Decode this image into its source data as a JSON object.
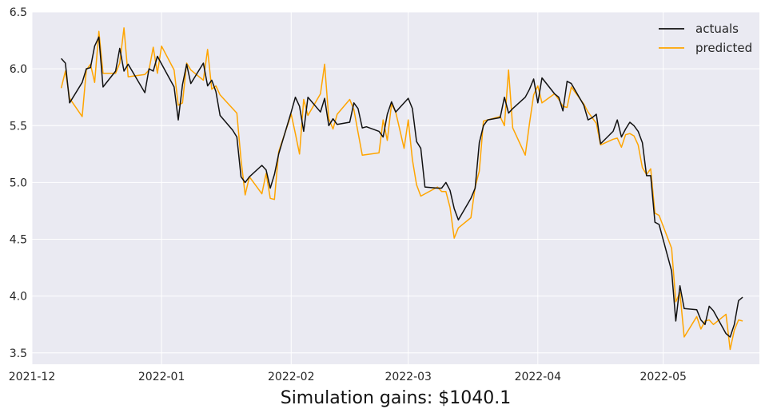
{
  "chart_data": {
    "type": "line",
    "xlabel": "Simulation gains: $1040.1",
    "ylabel": "",
    "ylim": [
      3.4,
      6.5
    ],
    "xlim": [
      "2021-12-01",
      "2022-05-24"
    ],
    "grid": true,
    "legend_position": "top-right",
    "background": "#eaeaf2",
    "x_ticks": [
      "2021-12-01",
      "2022-01-01",
      "2022-02-01",
      "2022-03-01",
      "2022-04-01",
      "2022-05-01"
    ],
    "x_tick_labels": [
      "2021-12",
      "2022-01",
      "2022-02",
      "2022-03",
      "2022-04",
      "2022-05"
    ],
    "y_ticks": [
      3.5,
      4.0,
      4.5,
      5.0,
      5.5,
      6.0,
      6.5
    ],
    "y_tick_labels": [
      "3.5",
      "4.0",
      "4.5",
      "5.0",
      "5.5",
      "6.0",
      "6.5"
    ],
    "series": [
      {
        "name": "actuals",
        "color": "#111111",
        "points": [
          [
            "2021-12-08",
            6.09
          ],
          [
            "2021-12-09",
            6.05
          ],
          [
            "2021-12-10",
            5.7
          ],
          [
            "2021-12-13",
            5.88
          ],
          [
            "2021-12-14",
            6.0
          ],
          [
            "2021-12-15",
            6.01
          ],
          [
            "2021-12-16",
            6.2
          ],
          [
            "2021-12-17",
            6.28
          ],
          [
            "2021-12-18",
            5.84
          ],
          [
            "2021-12-21",
            5.98
          ],
          [
            "2021-12-22",
            6.18
          ],
          [
            "2021-12-23",
            5.98
          ],
          [
            "2021-12-24",
            6.04
          ],
          [
            "2021-12-28",
            5.79
          ],
          [
            "2021-12-29",
            6.0
          ],
          [
            "2021-12-30",
            5.98
          ],
          [
            "2021-12-31",
            6.11
          ],
          [
            "2022-01-04",
            5.84
          ],
          [
            "2022-01-05",
            5.55
          ],
          [
            "2022-01-06",
            5.86
          ],
          [
            "2022-01-07",
            6.04
          ],
          [
            "2022-01-08",
            5.87
          ],
          [
            "2022-01-11",
            6.05
          ],
          [
            "2022-01-12",
            5.85
          ],
          [
            "2022-01-13",
            5.9
          ],
          [
            "2022-01-14",
            5.8
          ],
          [
            "2022-01-15",
            5.59
          ],
          [
            "2022-01-18",
            5.46
          ],
          [
            "2022-01-19",
            5.4
          ],
          [
            "2022-01-20",
            5.05
          ],
          [
            "2022-01-21",
            5.0
          ],
          [
            "2022-01-22",
            5.05
          ],
          [
            "2022-01-25",
            5.15
          ],
          [
            "2022-01-26",
            5.11
          ],
          [
            "2022-01-27",
            4.95
          ],
          [
            "2022-01-28",
            5.07
          ],
          [
            "2022-01-29",
            5.25
          ],
          [
            "2022-02-01",
            5.62
          ],
          [
            "2022-02-02",
            5.75
          ],
          [
            "2022-02-03",
            5.67
          ],
          [
            "2022-02-04",
            5.45
          ],
          [
            "2022-02-05",
            5.75
          ],
          [
            "2022-02-08",
            5.62
          ],
          [
            "2022-02-09",
            5.74
          ],
          [
            "2022-02-10",
            5.5
          ],
          [
            "2022-02-11",
            5.56
          ],
          [
            "2022-02-12",
            5.51
          ],
          [
            "2022-02-15",
            5.53
          ],
          [
            "2022-02-16",
            5.7
          ],
          [
            "2022-02-17",
            5.65
          ],
          [
            "2022-02-18",
            5.48
          ],
          [
            "2022-02-19",
            5.49
          ],
          [
            "2022-02-22",
            5.45
          ],
          [
            "2022-02-23",
            5.4
          ],
          [
            "2022-02-24",
            5.6
          ],
          [
            "2022-02-25",
            5.71
          ],
          [
            "2022-02-26",
            5.62
          ],
          [
            "2022-03-01",
            5.74
          ],
          [
            "2022-03-02",
            5.65
          ],
          [
            "2022-03-03",
            5.36
          ],
          [
            "2022-03-04",
            5.3
          ],
          [
            "2022-03-05",
            4.96
          ],
          [
            "2022-03-08",
            4.95
          ],
          [
            "2022-03-09",
            4.95
          ],
          [
            "2022-03-10",
            5.0
          ],
          [
            "2022-03-11",
            4.93
          ],
          [
            "2022-03-12",
            4.77
          ],
          [
            "2022-03-13",
            4.67
          ],
          [
            "2022-03-16",
            4.86
          ],
          [
            "2022-03-17",
            4.95
          ],
          [
            "2022-03-18",
            5.35
          ],
          [
            "2022-03-19",
            5.5
          ],
          [
            "2022-03-20",
            5.55
          ],
          [
            "2022-03-23",
            5.57
          ],
          [
            "2022-03-24",
            5.75
          ],
          [
            "2022-03-25",
            5.61
          ],
          [
            "2022-03-26",
            5.65
          ],
          [
            "2022-03-29",
            5.75
          ],
          [
            "2022-03-30",
            5.82
          ],
          [
            "2022-03-31",
            5.91
          ],
          [
            "2022-04-01",
            5.7
          ],
          [
            "2022-04-02",
            5.92
          ],
          [
            "2022-04-05",
            5.78
          ],
          [
            "2022-04-06",
            5.75
          ],
          [
            "2022-04-07",
            5.63
          ],
          [
            "2022-04-08",
            5.89
          ],
          [
            "2022-04-09",
            5.87
          ],
          [
            "2022-04-12",
            5.68
          ],
          [
            "2022-04-13",
            5.55
          ],
          [
            "2022-04-14",
            5.57
          ],
          [
            "2022-04-15",
            5.6
          ],
          [
            "2022-04-16",
            5.34
          ],
          [
            "2022-04-19",
            5.45
          ],
          [
            "2022-04-20",
            5.55
          ],
          [
            "2022-04-21",
            5.4
          ],
          [
            "2022-04-22",
            5.47
          ],
          [
            "2022-04-23",
            5.53
          ],
          [
            "2022-04-24",
            5.5
          ],
          [
            "2022-04-25",
            5.45
          ],
          [
            "2022-04-26",
            5.35
          ],
          [
            "2022-04-27",
            5.06
          ],
          [
            "2022-04-28",
            5.06
          ],
          [
            "2022-04-29",
            4.65
          ],
          [
            "2022-04-30",
            4.63
          ],
          [
            "2022-05-03",
            4.22
          ],
          [
            "2022-05-04",
            3.78
          ],
          [
            "2022-05-05",
            4.09
          ],
          [
            "2022-05-06",
            3.89
          ],
          [
            "2022-05-09",
            3.88
          ],
          [
            "2022-05-10",
            3.79
          ],
          [
            "2022-05-11",
            3.75
          ],
          [
            "2022-05-12",
            3.91
          ],
          [
            "2022-05-13",
            3.87
          ],
          [
            "2022-05-16",
            3.67
          ],
          [
            "2022-05-17",
            3.64
          ],
          [
            "2022-05-18",
            3.75
          ],
          [
            "2022-05-19",
            3.96
          ],
          [
            "2022-05-20",
            3.99
          ]
        ]
      },
      {
        "name": "predicted",
        "color": "#ffa500",
        "points": [
          [
            "2021-12-08",
            5.83
          ],
          [
            "2021-12-09",
            5.98
          ],
          [
            "2021-12-10",
            5.74
          ],
          [
            "2021-12-13",
            5.58
          ],
          [
            "2021-12-14",
            5.99
          ],
          [
            "2021-12-15",
            6.04
          ],
          [
            "2021-12-16",
            5.88
          ],
          [
            "2021-12-17",
            6.33
          ],
          [
            "2021-12-18",
            5.96
          ],
          [
            "2021-12-21",
            5.96
          ],
          [
            "2021-12-22",
            6.05
          ],
          [
            "2021-12-23",
            6.36
          ],
          [
            "2021-12-24",
            5.93
          ],
          [
            "2021-12-28",
            5.95
          ],
          [
            "2021-12-29",
            5.99
          ],
          [
            "2021-12-30",
            6.19
          ],
          [
            "2021-12-31",
            5.96
          ],
          [
            "2022-01-01",
            6.2
          ],
          [
            "2022-01-04",
            5.99
          ],
          [
            "2022-01-05",
            5.68
          ],
          [
            "2022-01-06",
            5.7
          ],
          [
            "2022-01-07",
            6.05
          ],
          [
            "2022-01-08",
            5.99
          ],
          [
            "2022-01-11",
            5.9
          ],
          [
            "2022-01-12",
            6.17
          ],
          [
            "2022-01-13",
            5.82
          ],
          [
            "2022-01-14",
            5.85
          ],
          [
            "2022-01-15",
            5.77
          ],
          [
            "2022-01-19",
            5.61
          ],
          [
            "2022-01-20",
            5.2
          ],
          [
            "2022-01-21",
            4.89
          ],
          [
            "2022-01-22",
            5.05
          ],
          [
            "2022-01-25",
            4.9
          ],
          [
            "2022-01-26",
            5.08
          ],
          [
            "2022-01-27",
            4.86
          ],
          [
            "2022-01-28",
            4.85
          ],
          [
            "2022-01-29",
            5.27
          ],
          [
            "2022-02-01",
            5.6
          ],
          [
            "2022-02-02",
            5.43
          ],
          [
            "2022-02-03",
            5.25
          ],
          [
            "2022-02-04",
            5.73
          ],
          [
            "2022-02-05",
            5.59
          ],
          [
            "2022-02-08",
            5.78
          ],
          [
            "2022-02-09",
            6.04
          ],
          [
            "2022-02-10",
            5.56
          ],
          [
            "2022-02-11",
            5.47
          ],
          [
            "2022-02-12",
            5.6
          ],
          [
            "2022-02-15",
            5.73
          ],
          [
            "2022-02-16",
            5.64
          ],
          [
            "2022-02-17",
            5.44
          ],
          [
            "2022-02-18",
            5.24
          ],
          [
            "2022-02-22",
            5.26
          ],
          [
            "2022-02-23",
            5.55
          ],
          [
            "2022-02-24",
            5.37
          ],
          [
            "2022-02-25",
            5.69
          ],
          [
            "2022-02-26",
            5.62
          ],
          [
            "2022-02-28",
            5.3
          ],
          [
            "2022-03-01",
            5.55
          ],
          [
            "2022-03-02",
            5.2
          ],
          [
            "2022-03-03",
            4.98
          ],
          [
            "2022-03-04",
            4.88
          ],
          [
            "2022-03-08",
            4.96
          ],
          [
            "2022-03-09",
            4.92
          ],
          [
            "2022-03-10",
            4.92
          ],
          [
            "2022-03-11",
            4.78
          ],
          [
            "2022-03-12",
            4.51
          ],
          [
            "2022-03-13",
            4.6
          ],
          [
            "2022-03-16",
            4.69
          ],
          [
            "2022-03-17",
            4.96
          ],
          [
            "2022-03-18",
            5.1
          ],
          [
            "2022-03-19",
            5.54
          ],
          [
            "2022-03-20",
            5.55
          ],
          [
            "2022-03-23",
            5.58
          ],
          [
            "2022-03-24",
            5.5
          ],
          [
            "2022-03-25",
            5.99
          ],
          [
            "2022-03-26",
            5.48
          ],
          [
            "2022-03-29",
            5.24
          ],
          [
            "2022-03-30",
            5.52
          ],
          [
            "2022-03-31",
            5.77
          ],
          [
            "2022-04-01",
            5.85
          ],
          [
            "2022-04-02",
            5.7
          ],
          [
            "2022-04-05",
            5.78
          ],
          [
            "2022-04-06",
            5.73
          ],
          [
            "2022-04-07",
            5.67
          ],
          [
            "2022-04-08",
            5.66
          ],
          [
            "2022-04-09",
            5.84
          ],
          [
            "2022-04-12",
            5.69
          ],
          [
            "2022-04-13",
            5.62
          ],
          [
            "2022-04-14",
            5.57
          ],
          [
            "2022-04-15",
            5.52
          ],
          [
            "2022-04-16",
            5.33
          ],
          [
            "2022-04-19",
            5.38
          ],
          [
            "2022-04-20",
            5.39
          ],
          [
            "2022-04-21",
            5.31
          ],
          [
            "2022-04-22",
            5.42
          ],
          [
            "2022-04-23",
            5.43
          ],
          [
            "2022-04-24",
            5.41
          ],
          [
            "2022-04-25",
            5.33
          ],
          [
            "2022-04-26",
            5.13
          ],
          [
            "2022-04-27",
            5.07
          ],
          [
            "2022-04-28",
            5.12
          ],
          [
            "2022-04-29",
            4.73
          ],
          [
            "2022-04-30",
            4.71
          ],
          [
            "2022-05-03",
            4.42
          ],
          [
            "2022-05-04",
            3.95
          ],
          [
            "2022-05-05",
            4.03
          ],
          [
            "2022-05-06",
            3.64
          ],
          [
            "2022-05-09",
            3.82
          ],
          [
            "2022-05-10",
            3.71
          ],
          [
            "2022-05-11",
            3.78
          ],
          [
            "2022-05-12",
            3.79
          ],
          [
            "2022-05-13",
            3.75
          ],
          [
            "2022-05-16",
            3.84
          ],
          [
            "2022-05-17",
            3.53
          ],
          [
            "2022-05-18",
            3.7
          ],
          [
            "2022-05-19",
            3.79
          ],
          [
            "2022-05-20",
            3.78
          ]
        ]
      }
    ]
  }
}
